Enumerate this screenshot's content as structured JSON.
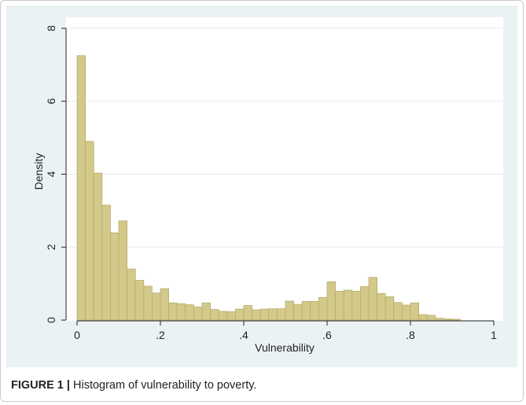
{
  "caption": {
    "label": "FIGURE 1 |",
    "text": " Histogram of vulnerability to poverty."
  },
  "colors": {
    "bar_fill": "#d2c98a",
    "bar_stroke": "#b8ad69",
    "plot_bg": "#ffffff",
    "outer_bg": "#eaf2f3",
    "grid": "#e4ebec"
  },
  "chart_data": {
    "type": "bar",
    "title": "",
    "xlabel": "Vulnerability",
    "ylabel": "Density",
    "xlim": [
      0,
      1
    ],
    "ylim": [
      0,
      8
    ],
    "grid": true,
    "bin_width": 0.02,
    "x_ticks": [
      {
        "value": 0,
        "label": "0"
      },
      {
        "value": 0.2,
        "label": ".2"
      },
      {
        "value": 0.4,
        "label": ".4"
      },
      {
        "value": 0.6,
        "label": ".6"
      },
      {
        "value": 0.8,
        "label": ".8"
      },
      {
        "value": 1,
        "label": "1"
      }
    ],
    "y_ticks": [
      {
        "value": 0,
        "label": "0"
      },
      {
        "value": 2,
        "label": "2"
      },
      {
        "value": 4,
        "label": "4"
      },
      {
        "value": 6,
        "label": "6"
      },
      {
        "value": 8,
        "label": "8"
      }
    ],
    "bin_starts": [
      0,
      0.02,
      0.04,
      0.06,
      0.08,
      0.1,
      0.12,
      0.14,
      0.16,
      0.18,
      0.2,
      0.22,
      0.24,
      0.26,
      0.28,
      0.3,
      0.32,
      0.34,
      0.36,
      0.38,
      0.4,
      0.42,
      0.44,
      0.46,
      0.48,
      0.5,
      0.52,
      0.54,
      0.56,
      0.58,
      0.6,
      0.62,
      0.64,
      0.66,
      0.68,
      0.7,
      0.72,
      0.74,
      0.76,
      0.78,
      0.8,
      0.82,
      0.84,
      0.86,
      0.88,
      0.9,
      0.92,
      0.94,
      0.96,
      0.98
    ],
    "values": [
      7.25,
      4.9,
      4.03,
      3.15,
      2.39,
      2.72,
      1.4,
      1.09,
      0.93,
      0.74,
      0.86,
      0.47,
      0.45,
      0.42,
      0.36,
      0.47,
      0.29,
      0.24,
      0.23,
      0.3,
      0.4,
      0.28,
      0.3,
      0.31,
      0.31,
      0.52,
      0.43,
      0.51,
      0.51,
      0.62,
      1.05,
      0.79,
      0.82,
      0.79,
      0.92,
      1.17,
      0.73,
      0.64,
      0.48,
      0.41,
      0.47,
      0.15,
      0.13,
      0.05,
      0.03,
      0.02,
      0,
      0,
      0,
      0
    ]
  }
}
